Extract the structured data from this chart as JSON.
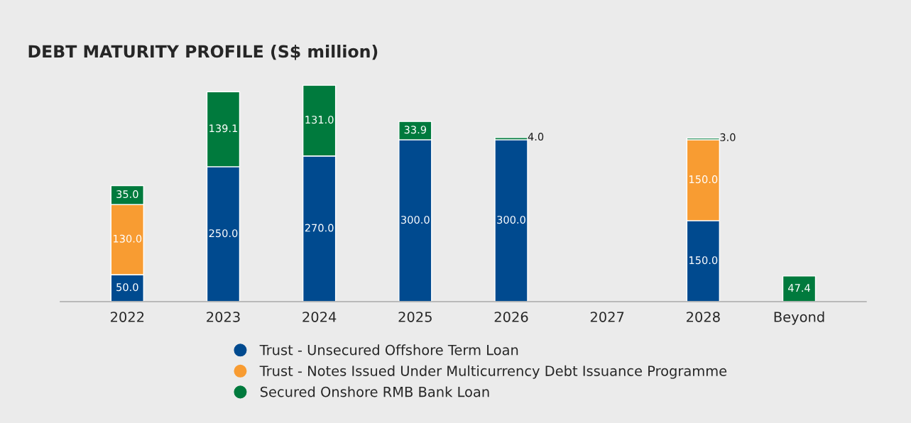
{
  "chart_data": {
    "type": "bar",
    "title": "DEBT MATURITY PROFILE (S$ million)",
    "categories": [
      "2022",
      "2023",
      "2024",
      "2025",
      "2026",
      "2027",
      "2028",
      "Beyond"
    ],
    "stacked": true,
    "legend": "bottom",
    "marker": "circle",
    "grid": false,
    "series": [
      {
        "name": "Trust - Unsecured Offshore Term Loan",
        "color": "#004a8f",
        "values": [
          50.0,
          250.0,
          270.0,
          300.0,
          300.0,
          null,
          150.0,
          null
        ],
        "value_labels": [
          "50.0",
          "250.0",
          "270.0",
          "300.0",
          "300.0",
          null,
          "150.0",
          null
        ]
      },
      {
        "name": "Trust - Notes Issued Under Multicurrency Debt Issuance Programme",
        "color": "#f89c32",
        "values": [
          130.0,
          null,
          null,
          null,
          null,
          null,
          150.0,
          null
        ],
        "value_labels": [
          "130.0",
          null,
          null,
          null,
          null,
          null,
          "150.0",
          null
        ]
      },
      {
        "name": "Secured Onshore RMB Bank Loan",
        "color": "#007a3d",
        "values": [
          35.0,
          139.1,
          131.0,
          33.9,
          4.0,
          null,
          3.0,
          47.4
        ],
        "value_labels": [
          "35.0",
          "139.1",
          "131.0",
          "33.9",
          "4.0",
          null,
          "3.0",
          "47.4"
        ]
      }
    ]
  }
}
